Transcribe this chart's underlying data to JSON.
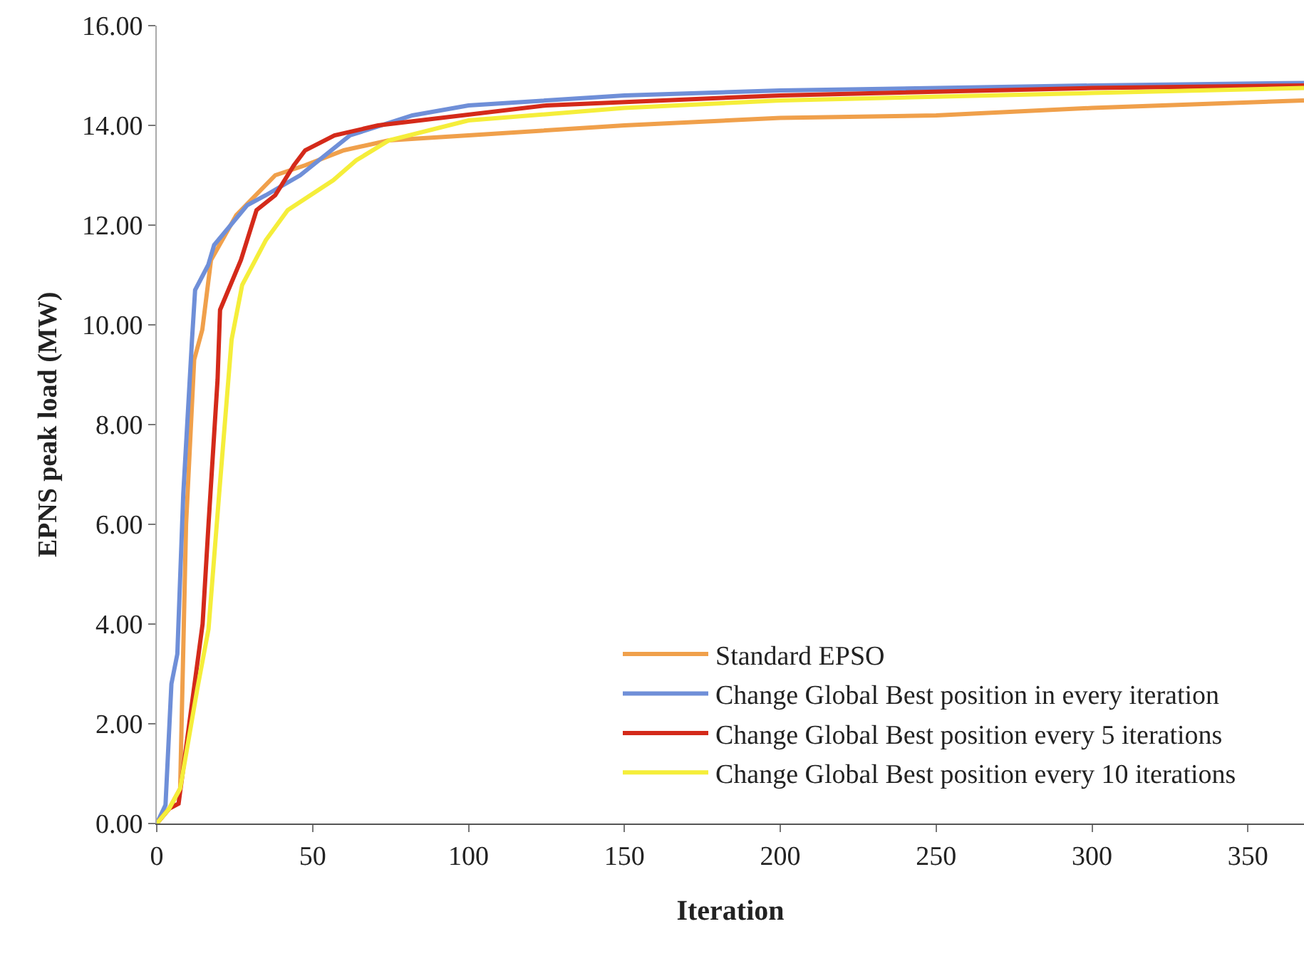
{
  "chart_data": {
    "type": "line",
    "xlabel": "Iteration",
    "ylabel": "EPNS peak load (MW)",
    "xlim": [
      0,
      368
    ],
    "xticks": [
      0,
      50,
      100,
      150,
      200,
      250,
      300,
      350
    ],
    "ylim": [
      0,
      16
    ],
    "yticks": [
      {
        "value": 0,
        "label": "0.00"
      },
      {
        "value": 2,
        "label": "2.00"
      },
      {
        "value": 4,
        "label": "4.00"
      },
      {
        "value": 6,
        "label": "6.00"
      },
      {
        "value": 8,
        "label": "8.00"
      },
      {
        "value": 10,
        "label": "10.00"
      },
      {
        "value": 12,
        "label": "12.00"
      },
      {
        "value": 14,
        "label": "14.00"
      },
      {
        "value": 16,
        "label": "16.00"
      }
    ],
    "grid": false,
    "legend": "bottom right",
    "marker": "none",
    "line_style": "solid",
    "series": [
      {
        "name": "Standard EPSO",
        "color": "#f0a04b",
        "x": [
          0,
          4,
          7.5,
          9.4,
          12,
          14.6,
          17.4,
          25.5,
          38,
          47.6,
          60,
          74.5,
          100,
          150,
          200,
          250,
          300,
          368
        ],
        "values": [
          0,
          0.3,
          0.7,
          6.0,
          9.3,
          9.9,
          11.3,
          12.2,
          13.0,
          13.2,
          13.5,
          13.7,
          13.8,
          14.0,
          14.15,
          14.2,
          14.35,
          14.5
        ]
      },
      {
        "name": "Change Global Best position in every iteration",
        "color": "#6f8fd8",
        "x": [
          0,
          2.8,
          4.7,
          6.6,
          8.5,
          11.3,
          12.3,
          16.5,
          18.4,
          29,
          35,
          46,
          62,
          82,
          100,
          150,
          200,
          300,
          368
        ],
        "values": [
          0,
          0.37,
          2.8,
          3.4,
          6.6,
          9.7,
          10.7,
          11.2,
          11.6,
          12.4,
          12.6,
          13.0,
          13.8,
          14.2,
          14.4,
          14.6,
          14.7,
          14.8,
          14.85
        ]
      },
      {
        "name": "Change Global Best position every 5 iterations",
        "color": "#d42a1a",
        "x": [
          0,
          4,
          7,
          14.7,
          16.6,
          19.5,
          20.3,
          27,
          32,
          38,
          44,
          47.6,
          57,
          71,
          125,
          200,
          300,
          368
        ],
        "values": [
          0,
          0.3,
          0.4,
          4.0,
          6.0,
          8.9,
          10.3,
          11.3,
          12.3,
          12.6,
          13.2,
          13.5,
          13.8,
          14.0,
          14.4,
          14.6,
          14.75,
          14.8
        ]
      },
      {
        "name": "Change Global Best position every 10 iterations",
        "color": "#f5ee3a",
        "x": [
          0,
          4,
          7.5,
          13,
          16.6,
          20,
          24,
          27.4,
          35,
          42,
          56.6,
          64,
          74.5,
          100,
          150,
          200,
          300,
          368
        ],
        "values": [
          0,
          0.3,
          0.7,
          2.7,
          3.9,
          6.6,
          9.7,
          10.8,
          11.7,
          12.3,
          12.9,
          13.3,
          13.7,
          14.1,
          14.35,
          14.5,
          14.65,
          14.75
        ]
      }
    ]
  }
}
